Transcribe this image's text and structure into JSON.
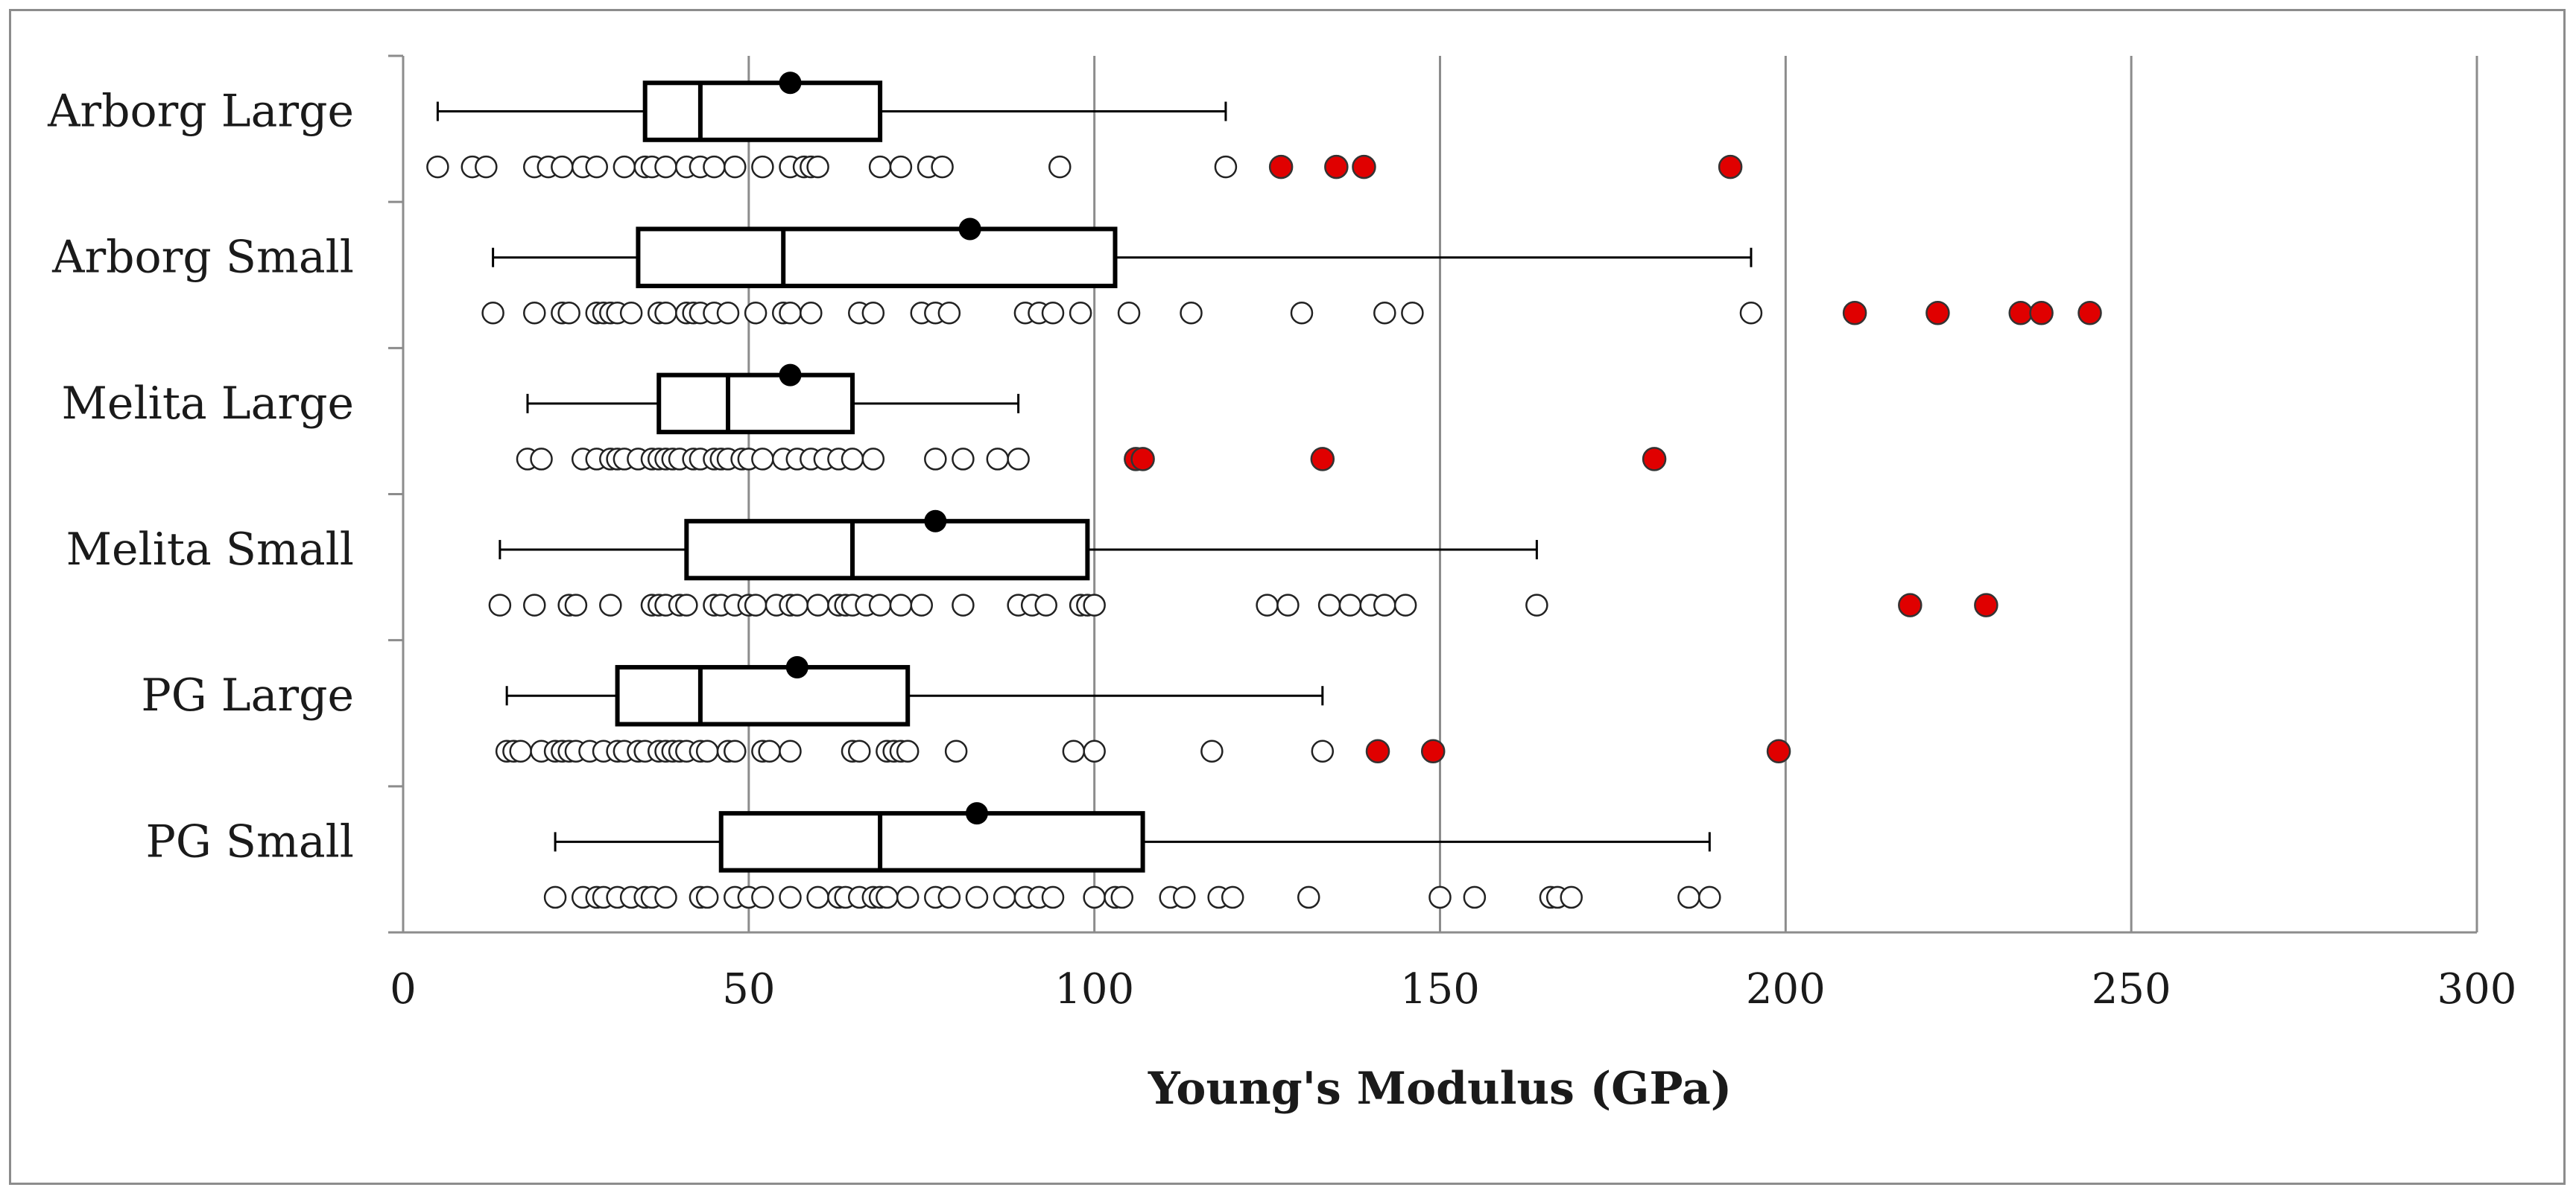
{
  "chart_data": {
    "type": "boxplot",
    "orientation": "horizontal",
    "title": "",
    "xlabel": "Young's Modulus (GPa)",
    "ylabel": "",
    "xlim": [
      0,
      300
    ],
    "x_ticks": [
      0,
      50,
      100,
      150,
      200,
      250,
      300
    ],
    "x_tick_labels": [
      "0",
      "50",
      "100",
      "150",
      "200",
      "250",
      "300"
    ],
    "grid": "vertical major gridlines",
    "legend": "none",
    "colors": {
      "outlier": "#e00000",
      "mean": "#000000",
      "box": "#000000",
      "grid": "#8c8c8c"
    },
    "categories": [
      "Arborg Large",
      "Arborg Small",
      "Melita Large",
      "Melita Small",
      "PG Large",
      "PG Small"
    ],
    "series": [
      {
        "name": "Arborg Large",
        "whisker_low": 5,
        "q1": 35,
        "median": 43,
        "q3": 69,
        "whisker_high": 119,
        "mean": 56,
        "points": [
          5,
          10,
          12,
          19,
          21,
          23,
          26,
          28,
          32,
          35,
          36,
          38,
          41,
          43,
          45,
          48,
          52,
          56,
          58,
          59,
          60,
          69,
          72,
          76,
          78,
          95,
          119
        ],
        "outliers": [
          127,
          135,
          139,
          192
        ]
      },
      {
        "name": "Arborg Small",
        "whisker_low": 13,
        "q1": 34,
        "median": 55,
        "q3": 103,
        "whisker_high": 195,
        "mean": 82,
        "points": [
          13,
          19,
          23,
          24,
          28,
          29,
          30,
          31,
          33,
          37,
          38,
          41,
          42,
          43,
          45,
          47,
          51,
          55,
          56,
          59,
          66,
          68,
          75,
          77,
          79,
          90,
          92,
          94,
          98,
          105,
          114,
          130,
          142,
          146,
          195
        ],
        "outliers": [
          210,
          222,
          234,
          237,
          244
        ]
      },
      {
        "name": "Melita Large",
        "whisker_low": 18,
        "q1": 37,
        "median": 47,
        "q3": 65,
        "whisker_high": 89,
        "mean": 56,
        "points": [
          18,
          20,
          26,
          28,
          30,
          31,
          32,
          34,
          36,
          37,
          38,
          39,
          40,
          42,
          43,
          45,
          46,
          47,
          49,
          50,
          52,
          55,
          57,
          59,
          61,
          63,
          65,
          68,
          77,
          81,
          86,
          89
        ],
        "outliers": [
          106,
          107,
          133,
          181
        ]
      },
      {
        "name": "Melita Small",
        "whisker_low": 14,
        "q1": 41,
        "median": 65,
        "q3": 99,
        "whisker_high": 164,
        "mean": 77,
        "points": [
          14,
          19,
          24,
          25,
          30,
          36,
          37,
          38,
          40,
          41,
          45,
          46,
          48,
          50,
          51,
          54,
          56,
          57,
          60,
          63,
          64,
          65,
          67,
          69,
          72,
          75,
          81,
          89,
          91,
          93,
          98,
          99,
          100,
          125,
          128,
          134,
          137,
          140,
          142,
          145,
          164
        ],
        "outliers": [
          218,
          229
        ]
      },
      {
        "name": "PG Large",
        "whisker_low": 15,
        "q1": 31,
        "median": 43,
        "q3": 73,
        "whisker_high": 133,
        "mean": 57,
        "points": [
          15,
          16,
          17,
          20,
          22,
          23,
          24,
          25,
          27,
          29,
          31,
          32,
          34,
          35,
          37,
          38,
          39,
          40,
          41,
          43,
          44,
          47,
          48,
          52,
          53,
          56,
          65,
          66,
          70,
          71,
          72,
          73,
          80,
          97,
          100,
          117,
          133
        ],
        "outliers": [
          141,
          149,
          199
        ]
      },
      {
        "name": "PG Small",
        "whisker_low": 22,
        "q1": 46,
        "median": 69,
        "q3": 107,
        "whisker_high": 189,
        "mean": 83,
        "points": [
          22,
          26,
          28,
          29,
          31,
          33,
          35,
          36,
          38,
          43,
          44,
          48,
          50,
          52,
          56,
          60,
          63,
          64,
          66,
          68,
          69,
          70,
          73,
          77,
          79,
          83,
          87,
          90,
          92,
          94,
          100,
          103,
          104,
          111,
          113,
          118,
          120,
          131,
          150,
          155,
          166,
          167,
          169,
          186,
          189
        ],
        "outliers": []
      }
    ]
  }
}
